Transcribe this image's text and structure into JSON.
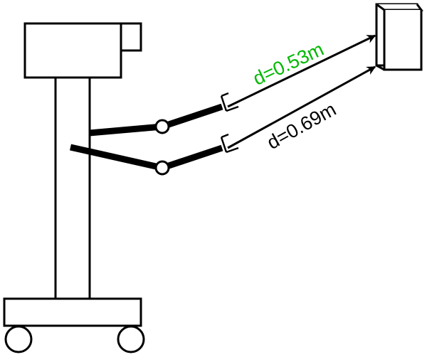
{
  "labels": {
    "upper_distance": "d=0.53m",
    "lower_distance": "d=0.69m"
  },
  "colors": {
    "stroke": "#000000",
    "upper_label": "#00b800",
    "lower_label": "#000000",
    "background": "#ffffff"
  }
}
